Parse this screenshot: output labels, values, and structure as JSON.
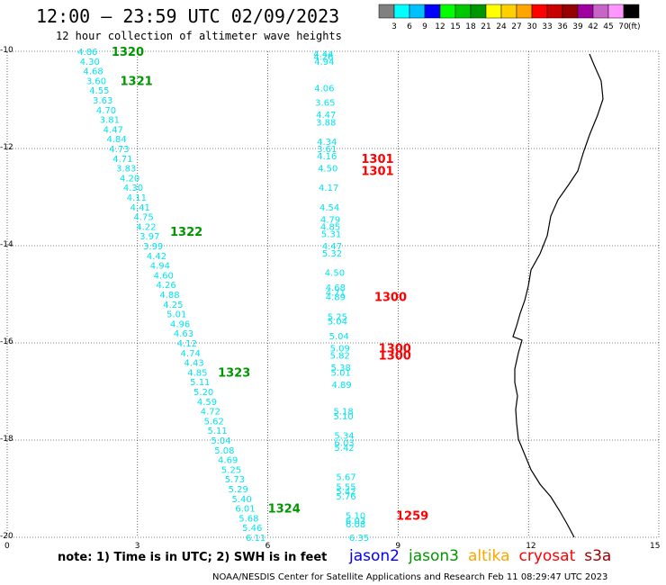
{
  "header": {
    "title": "12:00 – 23:59 UTC 02/09/2023",
    "subtitle": "12 hour collection of altimeter wave heights"
  },
  "colorbar": {
    "unit": "(ft)",
    "labels": [
      "3",
      "6",
      "9",
      "12",
      "15",
      "18",
      "21",
      "24",
      "27",
      "30",
      "33",
      "36",
      "39",
      "42",
      "45",
      "70"
    ],
    "colors": [
      "#808080",
      "#00ffff",
      "#00bfff",
      "#0000ff",
      "#00ff00",
      "#00c800",
      "#009600",
      "#ffff00",
      "#ffd000",
      "#ffa500",
      "#ff0000",
      "#c80000",
      "#960000",
      "#a000a0",
      "#c864c8",
      "#ff96ff",
      "#000000"
    ]
  },
  "axes": {
    "y_ticks": [
      "-10",
      "-12",
      "-14",
      "-16",
      "-18",
      "-20"
    ],
    "x_ticks": [
      "0",
      "3",
      "6",
      "9",
      "12",
      "15"
    ]
  },
  "chart_data": {
    "type": "map",
    "xlim": [
      0,
      15
    ],
    "ylim": [
      -20,
      -10
    ],
    "grid": true,
    "track_points": [
      {
        "x": 1.85,
        "y": -10.0,
        "swh": "4.86"
      },
      {
        "x": 1.9,
        "y": -10.2,
        "swh": "4.30"
      },
      {
        "x": 1.98,
        "y": -10.4,
        "swh": "4.68"
      },
      {
        "x": 2.05,
        "y": -10.6,
        "swh": "3.60"
      },
      {
        "x": 2.12,
        "y": -10.8,
        "swh": "4.55"
      },
      {
        "x": 2.2,
        "y": -11.0,
        "swh": "3.63"
      },
      {
        "x": 2.28,
        "y": -11.2,
        "swh": "4.70"
      },
      {
        "x": 2.36,
        "y": -11.4,
        "swh": "3.81"
      },
      {
        "x": 2.44,
        "y": -11.6,
        "swh": "4.47"
      },
      {
        "x": 2.52,
        "y": -11.8,
        "swh": "4.84"
      },
      {
        "x": 2.58,
        "y": -12.0,
        "swh": "4.73"
      },
      {
        "x": 2.66,
        "y": -12.2,
        "swh": "4.71"
      },
      {
        "x": 2.74,
        "y": -12.4,
        "swh": "3.83"
      },
      {
        "x": 2.82,
        "y": -12.6,
        "swh": "4.20"
      },
      {
        "x": 2.9,
        "y": -12.8,
        "swh": "4.30"
      },
      {
        "x": 2.98,
        "y": -13.0,
        "swh": "4.11"
      },
      {
        "x": 3.06,
        "y": -13.2,
        "swh": "4.41"
      },
      {
        "x": 3.14,
        "y": -13.4,
        "swh": "4.75"
      },
      {
        "x": 3.2,
        "y": -13.6,
        "swh": "4.22"
      },
      {
        "x": 3.28,
        "y": -13.8,
        "swh": "3.97"
      },
      {
        "x": 3.36,
        "y": -14.0,
        "swh": "3.99"
      },
      {
        "x": 3.44,
        "y": -14.2,
        "swh": "4.42"
      },
      {
        "x": 3.52,
        "y": -14.4,
        "swh": "4.94"
      },
      {
        "x": 3.6,
        "y": -14.6,
        "swh": "4.60"
      },
      {
        "x": 3.66,
        "y": -14.8,
        "swh": "4.26"
      },
      {
        "x": 3.74,
        "y": -15.0,
        "swh": "4.88"
      },
      {
        "x": 3.82,
        "y": -15.2,
        "swh": "4.25"
      },
      {
        "x": 3.9,
        "y": -15.4,
        "swh": "5.01"
      },
      {
        "x": 3.98,
        "y": -15.6,
        "swh": "4.96"
      },
      {
        "x": 4.06,
        "y": -15.8,
        "swh": "4.63"
      },
      {
        "x": 4.14,
        "y": -16.0,
        "swh": "4.12"
      },
      {
        "x": 4.22,
        "y": -16.2,
        "swh": "4.74"
      },
      {
        "x": 4.3,
        "y": -16.4,
        "swh": "4.43"
      },
      {
        "x": 4.38,
        "y": -16.6,
        "swh": "4.85"
      },
      {
        "x": 4.44,
        "y": -16.8,
        "swh": "5.11"
      },
      {
        "x": 4.52,
        "y": -17.0,
        "swh": "5.20"
      },
      {
        "x": 4.6,
        "y": -17.2,
        "swh": "4.59"
      },
      {
        "x": 4.68,
        "y": -17.4,
        "swh": "4.72"
      },
      {
        "x": 4.76,
        "y": -17.6,
        "swh": "5.62"
      },
      {
        "x": 4.84,
        "y": -17.8,
        "swh": "5.11"
      },
      {
        "x": 4.92,
        "y": -18.0,
        "swh": "5.04"
      },
      {
        "x": 5.0,
        "y": -18.2,
        "swh": "5.08"
      },
      {
        "x": 5.08,
        "y": -18.4,
        "swh": "4.69"
      },
      {
        "x": 5.16,
        "y": -18.6,
        "swh": "5.25"
      },
      {
        "x": 5.24,
        "y": -18.8,
        "swh": "5.73"
      },
      {
        "x": 5.32,
        "y": -19.0,
        "swh": "5.29"
      },
      {
        "x": 5.4,
        "y": -19.2,
        "swh": "5.40"
      },
      {
        "x": 5.48,
        "y": -19.4,
        "swh": "6.01"
      },
      {
        "x": 5.56,
        "y": -19.6,
        "swh": "5.68"
      },
      {
        "x": 5.64,
        "y": -19.8,
        "swh": "5.46"
      },
      {
        "x": 5.72,
        "y": -20.0,
        "swh": "6.11"
      },
      {
        "x": 7.3,
        "y": -10.2,
        "swh": "4.94"
      },
      {
        "x": 7.28,
        "y": -10.1,
        "swh": "4.26"
      },
      {
        "x": 7.28,
        "y": -10.05,
        "swh": "4.44"
      },
      {
        "x": 7.3,
        "y": -10.75,
        "swh": "4.06"
      },
      {
        "x": 7.32,
        "y": -11.05,
        "swh": "3.65"
      },
      {
        "x": 7.34,
        "y": -11.3,
        "swh": "4.47"
      },
      {
        "x": 7.34,
        "y": -11.45,
        "swh": "3.88"
      },
      {
        "x": 7.36,
        "y": -11.85,
        "swh": "4.34"
      },
      {
        "x": 7.36,
        "y": -12.0,
        "swh": "3.61"
      },
      {
        "x": 7.36,
        "y": -12.15,
        "swh": "4.16"
      },
      {
        "x": 7.38,
        "y": -12.4,
        "swh": "4.50"
      },
      {
        "x": 7.4,
        "y": -12.8,
        "swh": "4.17"
      },
      {
        "x": 7.42,
        "y": -13.2,
        "swh": "4.54"
      },
      {
        "x": 7.44,
        "y": -13.45,
        "swh": "4.79"
      },
      {
        "x": 7.44,
        "y": -13.6,
        "swh": "4.85"
      },
      {
        "x": 7.46,
        "y": -13.75,
        "swh": "5.31"
      },
      {
        "x": 7.48,
        "y": -14.0,
        "swh": "4.47"
      },
      {
        "x": 7.48,
        "y": -14.15,
        "swh": "5.32"
      },
      {
        "x": 7.54,
        "y": -14.55,
        "swh": "4.50"
      },
      {
        "x": 7.56,
        "y": -14.85,
        "swh": "4.68"
      },
      {
        "x": 7.56,
        "y": -14.95,
        "swh": "4.71"
      },
      {
        "x": 7.56,
        "y": -15.05,
        "swh": "4.89"
      },
      {
        "x": 7.6,
        "y": -15.45,
        "swh": "5.25"
      },
      {
        "x": 7.6,
        "y": -15.55,
        "swh": "5.04"
      },
      {
        "x": 7.64,
        "y": -15.85,
        "swh": "5.04"
      },
      {
        "x": 7.66,
        "y": -16.1,
        "swh": "5.09"
      },
      {
        "x": 7.66,
        "y": -16.25,
        "swh": "5.82"
      },
      {
        "x": 7.68,
        "y": -16.5,
        "swh": "5.38"
      },
      {
        "x": 7.68,
        "y": -16.6,
        "swh": "5.01"
      },
      {
        "x": 7.7,
        "y": -16.85,
        "swh": "4.89"
      },
      {
        "x": 7.74,
        "y": -17.4,
        "swh": "5.18"
      },
      {
        "x": 7.74,
        "y": -17.5,
        "swh": "5.10"
      },
      {
        "x": 7.76,
        "y": -17.9,
        "swh": "5.34"
      },
      {
        "x": 7.76,
        "y": -18.05,
        "swh": "6.03"
      },
      {
        "x": 7.76,
        "y": -18.15,
        "swh": "5.42"
      },
      {
        "x": 7.8,
        "y": -18.75,
        "swh": "5.67"
      },
      {
        "x": 7.8,
        "y": -18.95,
        "swh": "5.55"
      },
      {
        "x": 7.8,
        "y": -19.05,
        "swh": "5.42"
      },
      {
        "x": 7.8,
        "y": -19.15,
        "swh": "5.76"
      },
      {
        "x": 8.02,
        "y": -19.55,
        "swh": "5.10"
      },
      {
        "x": 8.02,
        "y": -19.65,
        "swh": "6.03"
      },
      {
        "x": 8.02,
        "y": -19.72,
        "swh": "6.08"
      },
      {
        "x": 8.1,
        "y": -20.0,
        "swh": "6.35"
      }
    ],
    "time_labels": [
      {
        "x": 2.4,
        "y": -10.0,
        "text": "1320",
        "satellite": "jason3"
      },
      {
        "x": 2.6,
        "y": -10.6,
        "text": "1321",
        "satellite": "jason3"
      },
      {
        "x": 3.75,
        "y": -13.7,
        "text": "1322",
        "satellite": "jason3"
      },
      {
        "x": 4.85,
        "y": -16.6,
        "text": "1323",
        "satellite": "jason3"
      },
      {
        "x": 6.0,
        "y": -19.4,
        "text": "1324",
        "satellite": "jason3"
      },
      {
        "x": 8.15,
        "y": -12.2,
        "text": "1301",
        "satellite": "cryosat"
      },
      {
        "x": 8.15,
        "y": -12.45,
        "text": "1301",
        "satellite": "cryosat"
      },
      {
        "x": 8.45,
        "y": -15.05,
        "text": "1300",
        "satellite": "cryosat"
      },
      {
        "x": 8.55,
        "y": -16.1,
        "text": "1300",
        "satellite": "cryosat"
      },
      {
        "x": 8.55,
        "y": -16.25,
        "text": "1300",
        "satellite": "cryosat"
      },
      {
        "x": 8.95,
        "y": -19.55,
        "text": "1259",
        "satellite": "cryosat"
      }
    ]
  },
  "note": "note:  1) Time is in UTC;  2) SWH is in feet",
  "legend": [
    {
      "name": "jason2",
      "color": "#0000ff"
    },
    {
      "name": "jason3",
      "color": "#009600"
    },
    {
      "name": "altika",
      "color": "#ffa500"
    },
    {
      "name": "cryosat",
      "color": "#ff0000"
    },
    {
      "name": "s3a",
      "color": "#a00000"
    }
  ],
  "credit": "NOAA/NESDIS Center for Satellite Applications and Research   Feb 11 08:29:47 UTC 2023",
  "colors": {
    "swh_text": "#00e5ee",
    "grid": "#000000",
    "coast": "#000000"
  }
}
